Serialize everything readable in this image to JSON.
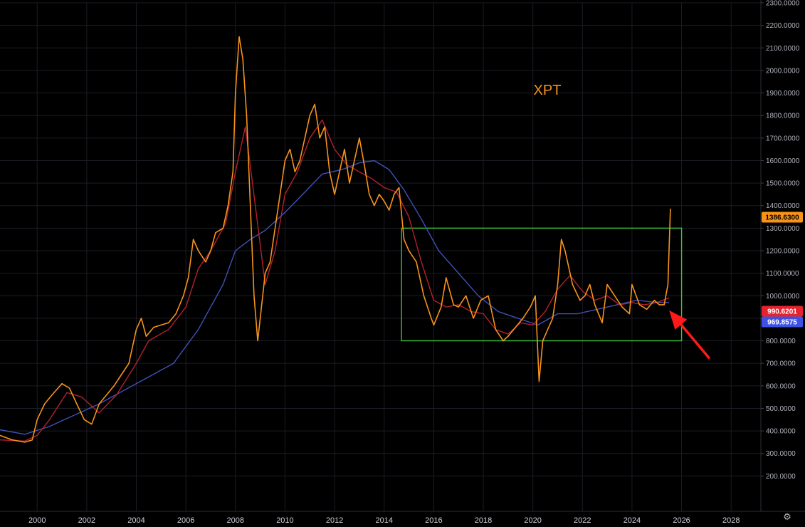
{
  "chart_data": {
    "type": "line",
    "title": "XPT",
    "xlabel": "",
    "ylabel": "",
    "xlim": [
      1998.5,
      2029.2
    ],
    "ylim": [
      100,
      2300
    ],
    "grid": true,
    "x_ticks": [
      "2000",
      "2002",
      "2004",
      "2006",
      "2008",
      "2010",
      "2012",
      "2014",
      "2016",
      "2018",
      "2020",
      "2022",
      "2024",
      "2026",
      "2028"
    ],
    "y_ticks": [
      "200.0000",
      "300.0000",
      "400.0000",
      "500.0000",
      "600.0000",
      "700.0000",
      "800.0000",
      "900.0000",
      "1000.0000",
      "1100.0000",
      "1200.0000",
      "1300.0000",
      "1400.0000",
      "1500.0000",
      "1600.0000",
      "1700.0000",
      "1800.0000",
      "1900.0000",
      "2000.0000",
      "2100.0000",
      "2200.0000",
      "2300.0000"
    ],
    "series": [
      {
        "color": "#f7931a",
        "x": [
          1998.5,
          1999.0,
          1999.5,
          1999.8,
          2000.0,
          2000.3,
          2000.6,
          2001.0,
          2001.3,
          2001.6,
          2001.9,
          2002.2,
          2002.5,
          2002.8,
          2003.1,
          2003.4,
          2003.7,
          2004.0,
          2004.2,
          2004.4,
          2004.7,
          2005.0,
          2005.3,
          2005.6,
          2005.9,
          2006.1,
          2006.3,
          2006.5,
          2006.8,
          2007.0,
          2007.2,
          2007.5,
          2007.7,
          2007.9,
          2008.0,
          2008.15,
          2008.3,
          2008.45,
          2008.6,
          2008.75,
          2008.9,
          2009.0,
          2009.2,
          2009.4,
          2009.6,
          2009.8,
          2010.0,
          2010.2,
          2010.4,
          2010.6,
          2010.8,
          2011.0,
          2011.2,
          2011.4,
          2011.6,
          2011.8,
          2012.0,
          2012.2,
          2012.4,
          2012.6,
          2012.8,
          2013.0,
          2013.2,
          2013.4,
          2013.6,
          2013.8,
          2014.0,
          2014.2,
          2014.4,
          2014.6,
          2014.8,
          2015.0,
          2015.3,
          2015.6,
          2015.9,
          2016.0,
          2016.3,
          2016.5,
          2016.8,
          2017.0,
          2017.3,
          2017.6,
          2017.9,
          2018.2,
          2018.5,
          2018.8,
          2019.0,
          2019.3,
          2019.6,
          2019.9,
          2020.1,
          2020.25,
          2020.4,
          2020.6,
          2020.8,
          2021.0,
          2021.15,
          2021.3,
          2021.6,
          2021.9,
          2022.1,
          2022.3,
          2022.5,
          2022.8,
          2023.0,
          2023.3,
          2023.6,
          2023.9,
          2024.0,
          2024.3,
          2024.6,
          2024.9,
          2025.1,
          2025.3,
          2025.45,
          2025.55
        ],
        "y": [
          380,
          360,
          350,
          360,
          450,
          520,
          560,
          610,
          590,
          520,
          450,
          430,
          520,
          560,
          600,
          650,
          700,
          850,
          900,
          820,
          860,
          870,
          880,
          920,
          1000,
          1080,
          1250,
          1200,
          1150,
          1200,
          1280,
          1300,
          1400,
          1550,
          1900,
          2150,
          2050,
          1800,
          1400,
          1000,
          800,
          900,
          1100,
          1150,
          1300,
          1450,
          1600,
          1650,
          1550,
          1600,
          1700,
          1800,
          1850,
          1700,
          1750,
          1550,
          1450,
          1550,
          1650,
          1500,
          1600,
          1700,
          1580,
          1450,
          1400,
          1450,
          1420,
          1380,
          1450,
          1480,
          1250,
          1200,
          1150,
          1000,
          900,
          870,
          950,
          1080,
          960,
          950,
          1000,
          900,
          980,
          1000,
          850,
          800,
          820,
          860,
          900,
          950,
          1000,
          620,
          800,
          850,
          900,
          1050,
          1250,
          1200,
          1050,
          980,
          1000,
          1050,
          960,
          880,
          1050,
          1000,
          950,
          920,
          1050,
          960,
          940,
          980,
          960,
          960,
          1050,
          1386.63
        ]
      },
      {
        "color": "#b5202e",
        "x": [
          1998.5,
          1999.5,
          2000.0,
          2000.5,
          2001.2,
          2001.8,
          2002.5,
          2003.2,
          2004.0,
          2004.5,
          2005.3,
          2006.0,
          2006.5,
          2007.0,
          2007.6,
          2008.0,
          2008.4,
          2008.8,
          2009.2,
          2009.6,
          2010.0,
          2010.5,
          2011.0,
          2011.5,
          2012.0,
          2012.5,
          2013.0,
          2013.5,
          2014.0,
          2014.5,
          2015.0,
          2015.5,
          2016.0,
          2016.5,
          2017.0,
          2017.5,
          2018.0,
          2018.5,
          2019.0,
          2019.5,
          2020.0,
          2020.5,
          2021.0,
          2021.5,
          2022.0,
          2022.5,
          2023.0,
          2023.5,
          2024.0,
          2024.5,
          2025.0,
          2025.5
        ],
        "y": [
          360,
          355,
          380,
          450,
          570,
          550,
          480,
          560,
          700,
          800,
          850,
          950,
          1120,
          1200,
          1320,
          1550,
          1750,
          1400,
          1050,
          1200,
          1450,
          1550,
          1700,
          1780,
          1650,
          1580,
          1550,
          1520,
          1480,
          1460,
          1350,
          1150,
          980,
          950,
          960,
          930,
          920,
          850,
          830,
          880,
          870,
          930,
          1030,
          1090,
          1020,
          980,
          1000,
          960,
          970,
          960,
          970,
          990.6201
        ]
      },
      {
        "color": "#3f51b5",
        "x": [
          1998.5,
          1999.5,
          2000.5,
          2001.5,
          2002.5,
          2003.5,
          2004.5,
          2005.5,
          2006.5,
          2007.5,
          2008.0,
          2008.6,
          2009.2,
          2010.0,
          2010.8,
          2011.5,
          2012.3,
          2013.0,
          2013.6,
          2014.2,
          2014.8,
          2015.5,
          2016.2,
          2017.0,
          2017.8,
          2018.6,
          2019.4,
          2020.2,
          2021.0,
          2021.8,
          2022.6,
          2023.4,
          2024.2,
          2025.0,
          2025.5
        ],
        "y": [
          405,
          385,
          420,
          470,
          520,
          580,
          640,
          700,
          850,
          1050,
          1200,
          1250,
          1290,
          1370,
          1460,
          1540,
          1560,
          1590,
          1600,
          1560,
          1470,
          1340,
          1200,
          1100,
          1000,
          930,
          900,
          870,
          920,
          920,
          940,
          960,
          980,
          970,
          969.8575
        ]
      }
    ],
    "last_value_labels": [
      {
        "text": "1386.6300",
        "value": 1386.63,
        "bg": "#f7931a",
        "fg": "#000000"
      },
      {
        "text": "990.6201",
        "value": 990.6201,
        "bg": "#e5232f",
        "fg": "#ffffff"
      },
      {
        "text": "969.8575",
        "value": 969.8575,
        "bg": "#3f51e5",
        "fg": "#ffffff"
      }
    ],
    "annotations": {
      "box": {
        "x0": 2014.7,
        "x1": 2026.0,
        "y0": 800,
        "y1": 1300,
        "color": "#3cc23c"
      },
      "arrow": {
        "from": [
          2027.1,
          725
        ],
        "to": [
          2025.5,
          935
        ],
        "color": "#ff1a1a"
      },
      "title_color": "#f7931a"
    }
  }
}
